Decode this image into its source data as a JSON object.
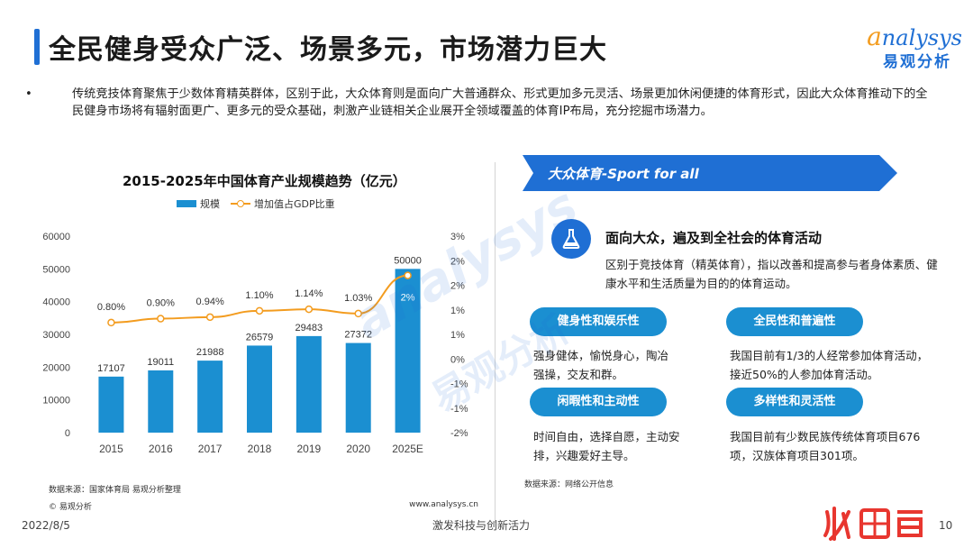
{
  "header": {
    "title": "全民健身受众广泛、场景多元，市场潜力巨大",
    "logo_en_first": "a",
    "logo_en_rest": "nalysys",
    "logo_cn": "易观分析"
  },
  "bullet": {
    "dot": "•",
    "text": "传统竞技体育聚焦于少数体育精英群体，区别于此，大众体育则是面向广大普通群众、形式更加多元灵活、场景更加休闲便捷的体育形式，因此大众体育推动下的全民健身市场将有辐射面更广、更多元的受众基础，刺激产业链相关企业展开全领域覆盖的体育IP布局，充分挖掘市场潜力。"
  },
  "chart": {
    "source": "数据来源：国家体育局 易观分析整理",
    "copyright": "© 易观分析",
    "url": "www.analysys.cn"
  },
  "chart_data": {
    "type": "bar",
    "title": "2015-2025年中国体育产业规模趋势（亿元）",
    "categories": [
      "2015",
      "2016",
      "2017",
      "2018",
      "2019",
      "2020",
      "2025E"
    ],
    "series": [
      {
        "name": "规模",
        "type": "bar",
        "axis": "left",
        "values": [
          17107,
          19011,
          21988,
          26579,
          29483,
          27372,
          50000
        ],
        "labels": [
          "17107",
          "19011",
          "21988",
          "26579",
          "29483",
          "27372",
          "50000"
        ],
        "color": "#1b8fd1"
      },
      {
        "name": "增加值占GDP比重",
        "type": "line",
        "axis": "right",
        "values": [
          0.8,
          0.9,
          0.94,
          1.1,
          1.14,
          1.03,
          2.0
        ],
        "labels": [
          "0.80%",
          "0.90%",
          "0.94%",
          "1.10%",
          "1.14%",
          "1.03%",
          "2%"
        ],
        "color": "#f39c1f"
      }
    ],
    "ylim": [
      0,
      60000
    ],
    "yticks": [
      "0",
      "10000",
      "20000",
      "30000",
      "40000",
      "50000",
      "60000"
    ],
    "y2lim": [
      -2,
      3
    ],
    "y2ticks": [
      "-2%",
      "-1%",
      "-1%",
      "0%",
      "1%",
      "1%",
      "2%",
      "2%",
      "3%"
    ],
    "legend_position": "top"
  },
  "right_panel": {
    "banner": "大众体育-Sport for all",
    "focus_title": "面向大众，遍及到全社会的体育活动",
    "focus_desc": "区别于竞技体育（精英体育），指以改善和提高参与者身体素质、健康水平和生活质量为目的的体育运动。",
    "items": [
      {
        "label": "健身性和娱乐性",
        "desc": "强身健体，愉悦身心，陶冶强操，交友和群。"
      },
      {
        "label": "全民性和普遍性",
        "desc": "我国目前有1/3的人经常参加体育活动，接近50%的人参加体育活动。"
      },
      {
        "label": "闲暇性和主动性",
        "desc": "时间自由，选择自愿，主动安排，兴趣爱好主导。"
      },
      {
        "label": "多样性和灵活性",
        "desc": "我国目前有少数民族传统体育项目676项，汉族体育项目301项。"
      }
    ],
    "source": "数据来源：网络公开信息"
  },
  "footer": {
    "date": "2022/8/5",
    "slogan": "激发科技与创新活力",
    "page": "10"
  },
  "watermark": {
    "en": "analysys",
    "cn": "易观分析"
  },
  "colors": {
    "accent": "#1f6fd4",
    "bar": "#1b8fd1",
    "line": "#f39c1f",
    "brand_red": "#e8362f"
  }
}
